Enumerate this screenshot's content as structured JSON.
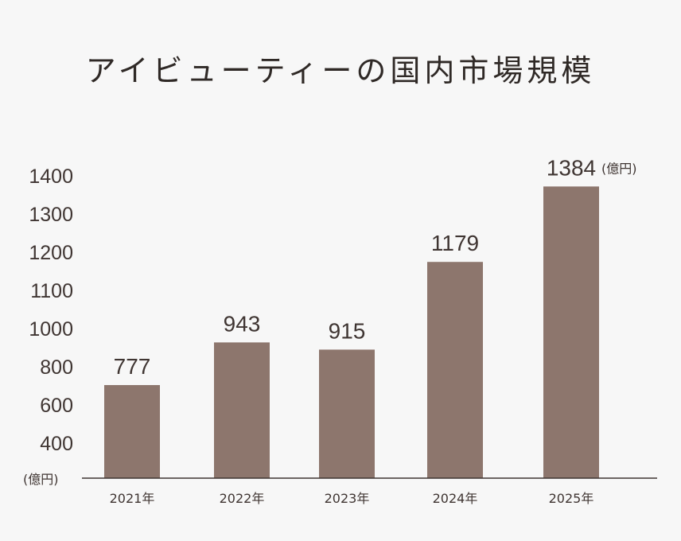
{
  "chart_data": {
    "type": "bar",
    "title": "アイビューティーの国内市場規模",
    "categories": [
      "2021年",
      "2022年",
      "2023年",
      "2024年",
      "2025年"
    ],
    "values": [
      777,
      943,
      915,
      1179,
      1384
    ],
    "y_ticks": [
      1400,
      1300,
      1200,
      1100,
      1000,
      800,
      600,
      400
    ],
    "unit": "(億円)",
    "value_unit": "(億円)",
    "grid": false,
    "bar_color": "#8d766d",
    "axis_color": "#3f3532"
  }
}
